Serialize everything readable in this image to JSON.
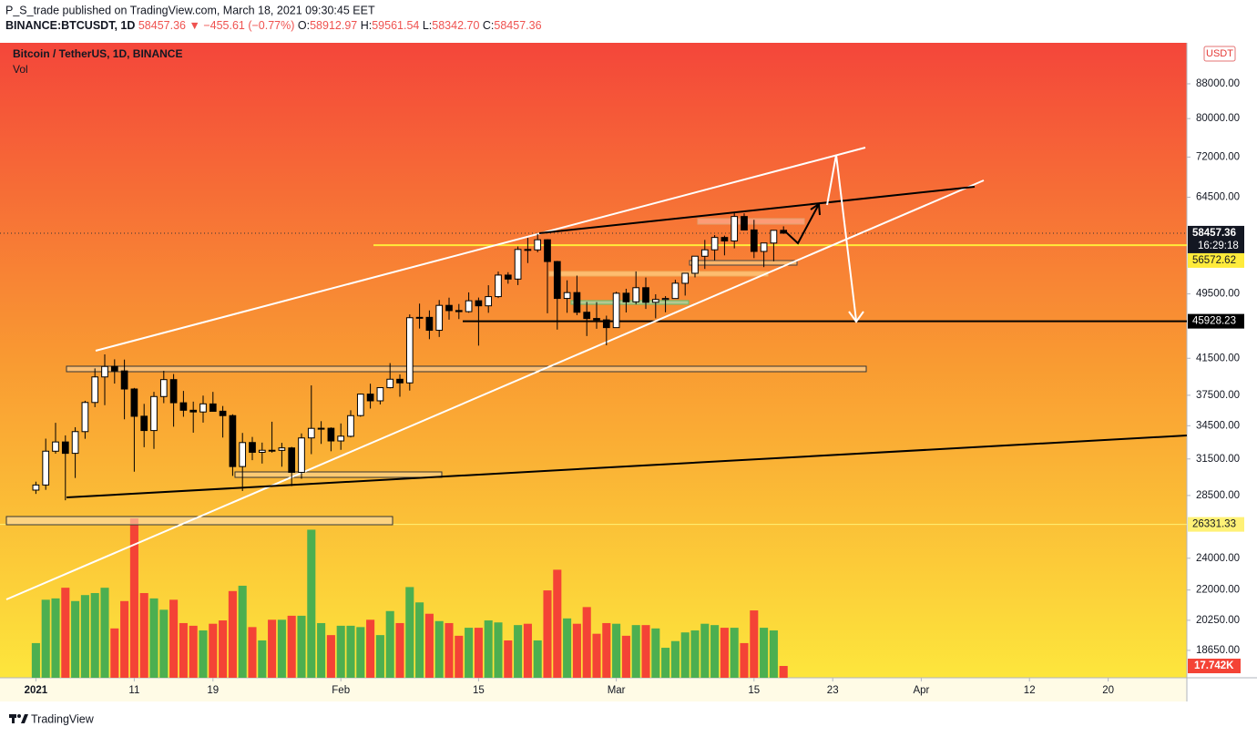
{
  "chart_data": {
    "type": "candlestick",
    "header": {
      "author_line": "P_S_trade published on TradingView.com, March 18, 2021 09:30:45 EET",
      "symbol": "BINANCE:BTCUSDT, 1D",
      "last": "58457.36",
      "change": "▼ −455.61 (−0.77%)",
      "ohlc": [
        {
          "label": "O:",
          "value": "58912.97"
        },
        {
          "label": "H:",
          "value": "59561.54"
        },
        {
          "label": "L:",
          "value": "58342.70"
        },
        {
          "label": "C:",
          "value": "58457.36"
        }
      ]
    },
    "title": "Bitcoin / TetherUS, 1D, BINANCE",
    "volume_title": "Vol",
    "currency": "USDT",
    "countdown": "16:29:18",
    "brand": "TradingView",
    "x": [
      "2021-01-01",
      "2021-01-02",
      "2021-01-03",
      "2021-01-04",
      "2021-01-05",
      "2021-01-06",
      "2021-01-07",
      "2021-01-08",
      "2021-01-09",
      "2021-01-10",
      "2021-01-11",
      "2021-01-12",
      "2021-01-13",
      "2021-01-14",
      "2021-01-15",
      "2021-01-16",
      "2021-01-17",
      "2021-01-18",
      "2021-01-19",
      "2021-01-20",
      "2021-01-21",
      "2021-01-22",
      "2021-01-23",
      "2021-01-24",
      "2021-01-25",
      "2021-01-26",
      "2021-01-27",
      "2021-01-28",
      "2021-01-29",
      "2021-01-30",
      "2021-01-31",
      "2021-02-01",
      "2021-02-02",
      "2021-02-03",
      "2021-02-04",
      "2021-02-05",
      "2021-02-06",
      "2021-02-07",
      "2021-02-08",
      "2021-02-09",
      "2021-02-10",
      "2021-02-11",
      "2021-02-12",
      "2021-02-13",
      "2021-02-14",
      "2021-02-15",
      "2021-02-16",
      "2021-02-17",
      "2021-02-18",
      "2021-02-19",
      "2021-02-20",
      "2021-02-21",
      "2021-02-22",
      "2021-02-23",
      "2021-02-24",
      "2021-02-25",
      "2021-02-26",
      "2021-02-27",
      "2021-02-28",
      "2021-03-01",
      "2021-03-02",
      "2021-03-03",
      "2021-03-04",
      "2021-03-05",
      "2021-03-06",
      "2021-03-07",
      "2021-03-08",
      "2021-03-09",
      "2021-03-10",
      "2021-03-11",
      "2021-03-12",
      "2021-03-13",
      "2021-03-14",
      "2021-03-15",
      "2021-03-16",
      "2021-03-17",
      "2021-03-18"
    ],
    "open": [
      28923,
      29331,
      32176,
      33000,
      31989,
      33949,
      36769,
      39433,
      40586,
      40088,
      38150,
      35410,
      34049,
      37371,
      39145,
      36737,
      35994,
      35825,
      36622,
      35901,
      35468,
      30851,
      32950,
      32078,
      32259,
      32251,
      32464,
      30363,
      33368,
      34246,
      34262,
      33092,
      33517,
      35472,
      37620,
      36936,
      38289,
      39181,
      38795,
      46374,
      46420,
      44807,
      47968,
      47298,
      47156,
      48580,
      47911,
      49134,
      52117,
      51552,
      55906,
      55842,
      57413,
      54087,
      48891,
      49677,
      47074,
      46276,
      46104,
      45134,
      49595,
      48436,
      50349,
      48374,
      48746,
      48882,
      50959,
      52375,
      54874,
      55851,
      57773,
      57221,
      61188,
      58976,
      55605,
      56900,
      58912.97
    ],
    "high": [
      29600,
      33300,
      34778,
      33600,
      34360,
      36939,
      40365,
      41950,
      41380,
      41350,
      38264,
      36628,
      37850,
      40100,
      39747,
      37950,
      36852,
      37469,
      37850,
      36415,
      35600,
      33826,
      33456,
      32944,
      34880,
      32921,
      32557,
      33783,
      38531,
      34933,
      34342,
      34717,
      35984,
      37662,
      38708,
      38310,
      40955,
      39700,
      46794,
      48200,
      47310,
      48678,
      48985,
      48150,
      49707,
      49010,
      50689,
      52618,
      52530,
      56368,
      57700,
      58352,
      57508,
      54183,
      51374,
      52041,
      48424,
      48394,
      46638,
      49790,
      50200,
      52640,
      51773,
      49448,
      49200,
      51450,
      52402,
      54895,
      57387,
      58150,
      58058,
      61844,
      61724,
      60633,
      56938,
      58978,
      59561.54
    ],
    "low": [
      28624,
      28946,
      31962,
      28130,
      29900,
      33288,
      36300,
      36500,
      38720,
      35111,
      30420,
      32531,
      32380,
      36701,
      34408,
      35357,
      33850,
      34800,
      35844,
      33400,
      30071,
      28850,
      31390,
      31106,
      32050,
      30837,
      29241,
      29842,
      31915,
      32825,
      32171,
      32296,
      33418,
      35362,
      36161,
      36570,
      38215,
      37351,
      37988,
      45020,
      43727,
      43994,
      46125,
      46202,
      47014,
      42960,
      47003,
      48947,
      50901,
      50710,
      53863,
      55477,
      46942,
      44892,
      47003,
      46700,
      44106,
      45000,
      43000,
      45115,
      47047,
      48100,
      47500,
      46300,
      47070,
      48882,
      49274,
      51789,
      53005,
      54269,
      55013,
      56078,
      58966,
      54600,
      53271,
      54123,
      58342.7
    ],
    "close": [
      29331,
      32178,
      33000,
      31988,
      33949,
      36769,
      39432,
      40582,
      40088,
      38150,
      35404,
      34051,
      37371,
      39144,
      36742,
      35994,
      35828,
      36631,
      35891,
      35468,
      30850,
      32945,
      32078,
      32259,
      32254,
      32467,
      30366,
      33364,
      34252,
      34262,
      33092,
      33526,
      35466,
      37618,
      36936,
      38290,
      39186,
      38795,
      46374,
      46420,
      44807,
      47969,
      47287,
      47153,
      48577,
      47911,
      49133,
      52119,
      51552,
      55906,
      55841,
      57408,
      54087,
      48891,
      49676,
      47073,
      46276,
      46106,
      45135,
      49587,
      48440,
      50349,
      48374,
      48751,
      48882,
      50971,
      52375,
      54884,
      55851,
      57773,
      57221,
      61188,
      58968,
      55605,
      56900,
      58912.97,
      58457.36
    ],
    "volume": [
      52000,
      117000,
      119000,
      135000,
      115000,
      124000,
      127000,
      135000,
      74000,
      115000,
      239000,
      127000,
      119000,
      102000,
      117000,
      82000,
      78000,
      71000,
      81000,
      86000,
      130000,
      138000,
      76000,
      56000,
      87000,
      87000,
      93000,
      93000,
      222000,
      82000,
      64000,
      78000,
      78000,
      76000,
      87000,
      64000,
      100000,
      82000,
      136000,
      113000,
      96000,
      85000,
      82000,
      63000,
      75000,
      75000,
      86000,
      83000,
      56000,
      79000,
      81000,
      56000,
      131000,
      162000,
      89000,
      81000,
      106000,
      66000,
      82000,
      81000,
      63000,
      79000,
      79000,
      74000,
      45000,
      55000,
      68000,
      71000,
      81000,
      79000,
      75000,
      75000,
      52000,
      101000,
      75000,
      71000,
      17742
    ],
    "volume_last_label": "17.742K",
    "up_color": "#ffffff",
    "down_color": "#000000",
    "volume_up_color": "#4caf50",
    "volume_down_color": "#f44336",
    "log_scale": true,
    "grid": false,
    "xlim": [
      "2020-12-29",
      "2021-04-28"
    ],
    "xticks": [
      {
        "value": "2021-01-01",
        "label": "2021"
      },
      {
        "value": "2021-01-11",
        "label": "11"
      },
      {
        "value": "2021-01-19",
        "label": "19"
      },
      {
        "value": "2021-02-01",
        "label": "Feb"
      },
      {
        "value": "2021-02-15",
        "label": "15"
      },
      {
        "value": "2021-03-01",
        "label": "Mar"
      },
      {
        "value": "2021-03-15",
        "label": "15"
      },
      {
        "value": "2021-03-23",
        "label": "23"
      },
      {
        "value": "2021-04-01",
        "label": "Apr"
      },
      {
        "value": "2021-04-12",
        "label": "12"
      },
      {
        "value": "2021-04-20",
        "label": "20"
      }
    ],
    "ylim": [
      17300,
      98450
    ],
    "yticks": [
      {
        "value": 88000,
        "label": "88000.00"
      },
      {
        "value": 80000,
        "label": "80000.00"
      },
      {
        "value": 72000,
        "label": "72000.00"
      },
      {
        "value": 64500,
        "label": "64500.00"
      },
      {
        "value": 49500,
        "label": "49500.00"
      },
      {
        "value": 41500,
        "label": "41500.00"
      },
      {
        "value": 37500,
        "label": "37500.00"
      },
      {
        "value": 34500,
        "label": "34500.00"
      },
      {
        "value": 31500,
        "label": "31500.00"
      },
      {
        "value": 28500,
        "label": "28500.00"
      },
      {
        "value": 24000,
        "label": "24000.00"
      },
      {
        "value": 22000,
        "label": "22000.00"
      },
      {
        "value": 20250,
        "label": "20250.00"
      },
      {
        "value": 18650,
        "label": "18650.00"
      }
    ],
    "levels": [
      {
        "value": 56572.62,
        "color": "#ffeb3b"
      },
      {
        "value": 45928.23,
        "color": "#000000"
      },
      {
        "value": 26331.33,
        "color": "#fff176"
      }
    ]
  }
}
